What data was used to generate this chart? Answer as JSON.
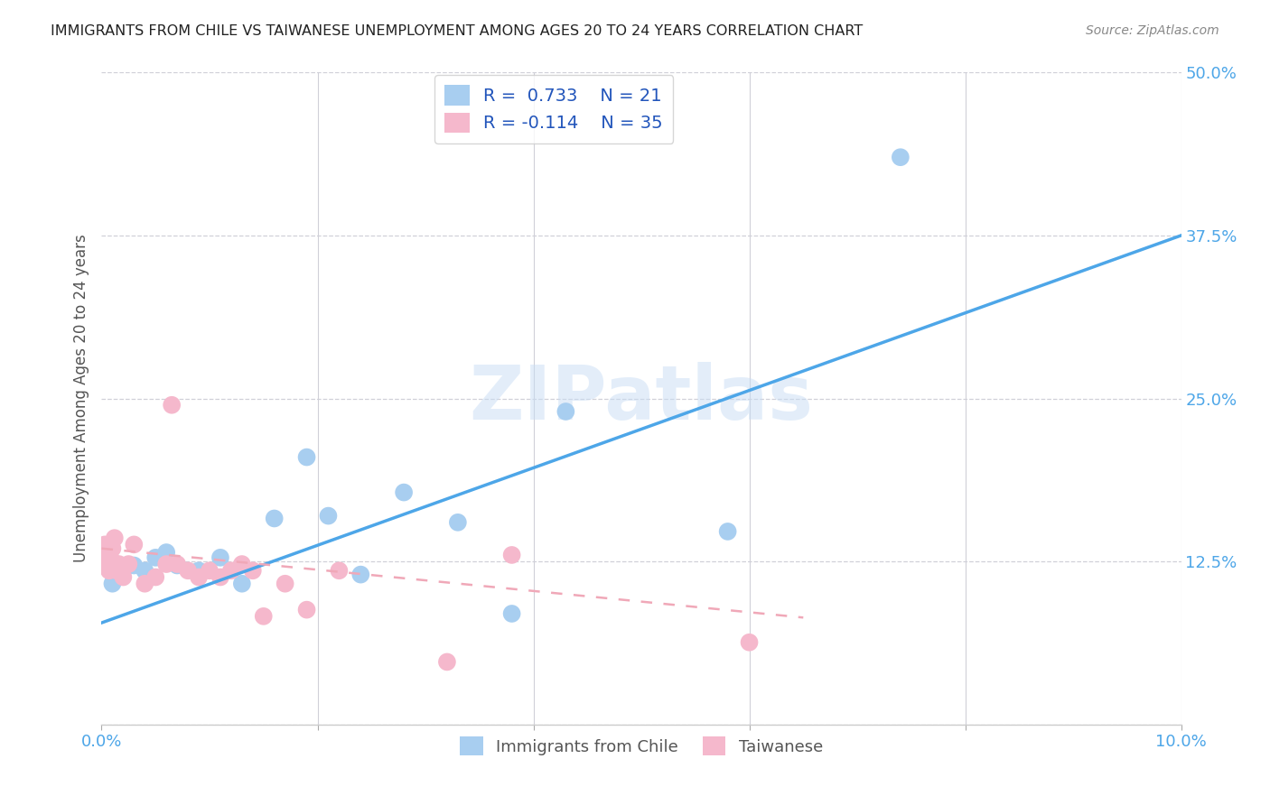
{
  "title": "IMMIGRANTS FROM CHILE VS TAIWANESE UNEMPLOYMENT AMONG AGES 20 TO 24 YEARS CORRELATION CHART",
  "source": "Source: ZipAtlas.com",
  "ylabel": "Unemployment Among Ages 20 to 24 years",
  "xlim": [
    0.0,
    0.1
  ],
  "ylim": [
    0.0,
    0.5
  ],
  "xticks": [
    0.0,
    0.02,
    0.04,
    0.06,
    0.08,
    0.1
  ],
  "yticks": [
    0.0,
    0.125,
    0.25,
    0.375,
    0.5
  ],
  "ytick_labels": [
    "",
    "12.5%",
    "25.0%",
    "37.5%",
    "50.0%"
  ],
  "xtick_labels": [
    "0.0%",
    "",
    "",
    "",
    "",
    "10.0%"
  ],
  "blue_scatter_x": [
    0.001,
    0.002,
    0.003,
    0.004,
    0.005,
    0.006,
    0.007,
    0.009,
    0.011,
    0.013,
    0.016,
    0.019,
    0.021,
    0.024,
    0.028,
    0.033,
    0.038,
    0.043,
    0.058,
    0.074
  ],
  "blue_scatter_y": [
    0.108,
    0.118,
    0.122,
    0.118,
    0.128,
    0.132,
    0.122,
    0.118,
    0.128,
    0.108,
    0.158,
    0.205,
    0.16,
    0.115,
    0.178,
    0.155,
    0.085,
    0.24,
    0.148,
    0.435
  ],
  "pink_scatter_x": [
    0.0002,
    0.0003,
    0.0005,
    0.0007,
    0.0008,
    0.001,
    0.0012,
    0.0014,
    0.0016,
    0.002,
    0.0025,
    0.003,
    0.004,
    0.005,
    0.006,
    0.0065,
    0.007,
    0.008,
    0.009,
    0.01,
    0.011,
    0.012,
    0.013,
    0.014,
    0.015,
    0.017,
    0.019,
    0.022,
    0.032,
    0.038,
    0.06
  ],
  "pink_scatter_y": [
    0.13,
    0.138,
    0.122,
    0.118,
    0.128,
    0.135,
    0.143,
    0.118,
    0.123,
    0.113,
    0.123,
    0.138,
    0.108,
    0.113,
    0.123,
    0.245,
    0.123,
    0.118,
    0.113,
    0.118,
    0.113,
    0.118,
    0.123,
    0.118,
    0.083,
    0.108,
    0.088,
    0.118,
    0.048,
    0.13,
    0.063
  ],
  "blue_R": 0.733,
  "blue_N": 21,
  "pink_R": -0.114,
  "pink_N": 35,
  "blue_line_color": "#4da6e8",
  "pink_line_color": "#f0a8b8",
  "blue_scatter_color": "#a8cef0",
  "pink_scatter_color": "#f5b8cc",
  "blue_line_x0": 0.0,
  "blue_line_y0": 0.078,
  "blue_line_x1": 0.1,
  "blue_line_y1": 0.375,
  "pink_line_x0": 0.0,
  "pink_line_y0": 0.135,
  "pink_line_x1": 0.065,
  "pink_line_y1": 0.082,
  "watermark": "ZIPatlas",
  "background_color": "#ffffff",
  "grid_color": "#d0d0d8",
  "legend_text_color": "#2255bb"
}
